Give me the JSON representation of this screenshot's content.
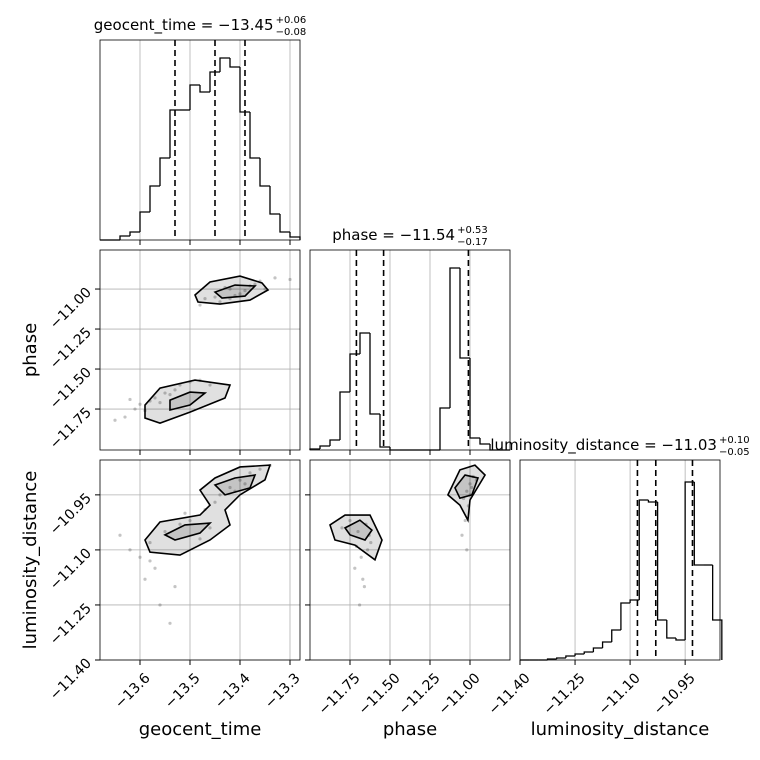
{
  "chart_data": [
    {
      "type": "histogram",
      "title": "geocent_time = −13.45",
      "title_upper": "+0.06",
      "title_lower": "−0.08",
      "bins": [
        -13.68,
        -13.66,
        -13.64,
        -13.62,
        -13.6,
        -13.58,
        -13.56,
        -13.54,
        -13.52,
        -13.5,
        -13.48,
        -13.46,
        -13.44,
        -13.42,
        -13.4,
        -13.38,
        -13.36,
        -13.34,
        -13.32,
        -13.3,
        -13.28
      ],
      "counts": [
        0,
        0,
        4,
        8,
        28,
        54,
        82,
        130,
        130,
        155,
        148,
        168,
        182,
        173,
        128,
        82,
        54,
        26,
        8,
        3
      ],
      "quantiles": [
        -13.53,
        -13.45,
        -13.39
      ],
      "color": "#000000",
      "xlim": [
        -13.68,
        -13.28
      ],
      "xticks": [
        -13.6,
        -13.5,
        -13.4,
        -13.3
      ],
      "ylim": [
        0,
        200
      ],
      "grid": true
    },
    {
      "type": "scatter",
      "ylabel": "phase",
      "x": [
        -13.45,
        -13.42,
        -13.38,
        -13.36,
        -13.4,
        -13.44,
        -13.47,
        -13.33,
        -13.39,
        -13.41,
        -13.43,
        -13.35,
        -13.48,
        -13.37,
        -13.42,
        -13.3,
        -13.6,
        -13.55,
        -13.52,
        -13.58,
        -13.63,
        -13.5,
        -13.57,
        -13.53,
        -13.61,
        -13.48,
        -13.56,
        -13.59,
        -13.65,
        -13.54,
        -13.46,
        -13.62
      ],
      "y": [
        -11.05,
        -11.0,
        -10.98,
        -10.95,
        -11.03,
        -11.08,
        -11.06,
        -10.93,
        -11.01,
        -11.04,
        -10.99,
        -11.0,
        -11.1,
        -10.97,
        -11.06,
        -10.94,
        -11.72,
        -11.65,
        -11.6,
        -11.7,
        -11.8,
        -11.58,
        -11.68,
        -11.63,
        -11.75,
        -11.57,
        -11.71,
        -11.76,
        -11.82,
        -11.66,
        -11.6,
        -11.69
      ],
      "contours": [
        {
          "x": [
            -13.49,
            -13.46,
            -13.4,
            -13.356,
            -13.344,
            -13.38,
            -13.44,
            -13.484
          ],
          "y": [
            -11.037,
            -10.956,
            -10.919,
            -10.962,
            -11.006,
            -11.069,
            -11.094,
            -11.081
          ]
        },
        {
          "x": [
            -13.45,
            -13.41,
            -13.37,
            -13.39,
            -13.436
          ],
          "y": [
            -11.019,
            -10.975,
            -10.981,
            -11.044,
            -11.056
          ]
        },
        {
          "x": [
            -13.59,
            -13.56,
            -13.49,
            -13.42,
            -13.43,
            -13.5,
            -13.56,
            -13.59
          ],
          "y": [
            -11.725,
            -11.619,
            -11.569,
            -11.6,
            -11.681,
            -11.769,
            -11.838,
            -11.806
          ]
        },
        {
          "x": [
            -13.54,
            -13.5,
            -13.47,
            -13.5,
            -13.54
          ],
          "y": [
            -11.694,
            -11.644,
            -11.65,
            -11.725,
            -11.756
          ]
        }
      ],
      "color": "#555555",
      "xlim": [
        -13.68,
        -13.28
      ],
      "xticks": [
        -13.6,
        -13.5,
        -13.4,
        -13.3
      ],
      "ylim": [
        -12.006,
        -10.756
      ],
      "yticks": [
        {
          "value": -11.75,
          "label": "−11.75"
        },
        {
          "value": -11.5,
          "label": "−11.50"
        },
        {
          "value": -11.25,
          "label": "−11.25"
        },
        {
          "value": -11.0,
          "label": "−11.00"
        }
      ],
      "grid": true
    },
    {
      "type": "histogram",
      "title": "phase = −11.54",
      "title_upper": "+0.53",
      "title_lower": "−0.17",
      "bins": [
        -12.0,
        -11.9375,
        -11.875,
        -11.8125,
        -11.75,
        -11.6875,
        -11.625,
        -11.5625,
        -11.5,
        -11.4375,
        -11.375,
        -11.3125,
        -11.25,
        -11.1875,
        -11.125,
        -11.0625,
        -11.0,
        -10.9375,
        -10.875,
        -10.8125,
        -10.75
      ],
      "counts": [
        1,
        4,
        10,
        58,
        96,
        117,
        36,
        3,
        0,
        0,
        0,
        0,
        0,
        42,
        182,
        92,
        12,
        6,
        0,
        0
      ],
      "quantiles": [
        -11.71,
        -11.54,
        -11.01
      ],
      "color": "#000000",
      "xlim": [
        -12.0,
        -10.75
      ],
      "xticks": [
        -11.75,
        -11.5,
        -11.25,
        -11.0
      ],
      "ylim": [
        0,
        200
      ],
      "grid": true
    },
    {
      "type": "scatter",
      "xlabel": "geocent_time",
      "ylabel": "luminosity_distance",
      "x": [
        -13.42,
        -13.4,
        -13.38,
        -13.44,
        -13.36,
        -13.45,
        -13.39,
        -13.41,
        -13.34,
        -13.47,
        -13.55,
        -13.52,
        -13.58,
        -13.5,
        -13.6,
        -13.57,
        -13.53,
        -13.48,
        -13.62,
        -13.56,
        -13.59,
        -13.51,
        -13.64,
        -13.54,
        -13.46,
        -13.58
      ],
      "y": [
        -10.93,
        -10.91,
        -10.89,
        -10.95,
        -10.88,
        -10.97,
        -10.92,
        -10.94,
        -10.87,
        -10.99,
        -11.05,
        -11.03,
        -11.08,
        -11.02,
        -11.12,
        -11.15,
        -11.2,
        -11.07,
        -11.1,
        -11.25,
        -11.18,
        -11.0,
        -11.06,
        -11.3,
        -11.04,
        -11.13
      ],
      "contours": [
        {
          "x": [
            -13.59,
            -13.56,
            -13.48,
            -13.46,
            -13.48,
            -13.45,
            -13.4,
            -13.34,
            -13.35,
            -13.4,
            -13.43,
            -13.42,
            -13.46,
            -13.52,
            -13.58
          ],
          "y": [
            -11.073,
            -11.024,
            -11.005,
            -10.978,
            -10.937,
            -10.904,
            -10.874,
            -10.869,
            -10.909,
            -10.95,
            -10.991,
            -11.032,
            -11.073,
            -11.114,
            -11.106
          ]
        },
        {
          "x": [
            -13.45,
            -13.41,
            -13.37,
            -13.38,
            -13.43
          ],
          "y": [
            -10.923,
            -10.904,
            -10.896,
            -10.931,
            -10.95
          ]
        },
        {
          "x": [
            -13.55,
            -13.51,
            -13.46,
            -13.48,
            -13.53
          ],
          "y": [
            -11.059,
            -11.032,
            -11.027,
            -11.054,
            -11.073
          ]
        }
      ],
      "color": "#555555",
      "xlim": [
        -13.68,
        -13.28
      ],
      "xticks": [
        {
          "value": -13.6,
          "label": "−13.6"
        },
        {
          "value": -13.5,
          "label": "−13.5"
        },
        {
          "value": -13.4,
          "label": "−13.4"
        },
        {
          "value": -13.3,
          "label": "−13.3"
        }
      ],
      "ylim": [
        -11.4,
        -10.855
      ],
      "yticks": [
        {
          "value": -11.4,
          "label": "−11.40"
        },
        {
          "value": -11.25,
          "label": "−11.25"
        },
        {
          "value": -11.1,
          "label": "−11.10"
        },
        {
          "value": -10.95,
          "label": "−10.95"
        }
      ],
      "grid": true
    },
    {
      "type": "scatter",
      "xlabel": "phase",
      "x": [
        -11.7,
        -11.65,
        -11.75,
        -11.62,
        -11.68,
        -11.72,
        -11.66,
        -11.8,
        -11.64,
        -11.69,
        -11.67,
        -11.63,
        -11.71,
        -11.02,
        -11.0,
        -10.98,
        -11.04,
        -11.01,
        -10.96,
        -11.03,
        -11.05,
        -10.99,
        -11.02,
        -11.0
      ],
      "y": [
        -11.05,
        -11.03,
        -11.02,
        -11.08,
        -11.12,
        -11.15,
        -11.2,
        -11.04,
        -11.1,
        -11.25,
        -11.18,
        -11.06,
        -11.09,
        -10.94,
        -10.92,
        -10.9,
        -10.96,
        -10.98,
        -10.91,
        -11.02,
        -11.06,
        -10.93,
        -11.1,
        -10.95
      ],
      "contours": [
        {
          "x": [
            -11.875,
            -11.781,
            -11.625,
            -11.55,
            -11.594,
            -11.719,
            -11.844
          ],
          "y": [
            -11.032,
            -11.005,
            -11.005,
            -11.073,
            -11.127,
            -11.087,
            -11.073
          ]
        },
        {
          "x": [
            -11.781,
            -11.688,
            -11.613,
            -11.656,
            -11.75
          ],
          "y": [
            -11.04,
            -11.019,
            -11.046,
            -11.073,
            -11.059
          ]
        },
        {
          "x": [
            -11.138,
            -11.063,
            -10.969,
            -10.906,
            -11.0,
            -11.013,
            -11.063
          ],
          "y": [
            -10.95,
            -10.882,
            -10.869,
            -10.896,
            -10.964,
            -11.019,
            -10.978
          ]
        },
        {
          "x": [
            -11.094,
            -11.031,
            -10.95,
            -10.988,
            -11.063
          ],
          "y": [
            -10.931,
            -10.896,
            -10.904,
            -10.95,
            -10.959
          ]
        }
      ],
      "color": "#555555",
      "xlim": [
        -12.0,
        -10.75
      ],
      "xticks": [
        {
          "value": -11.75,
          "label": "−11.75"
        },
        {
          "value": -11.5,
          "label": "−11.50"
        },
        {
          "value": -11.25,
          "label": "−11.25"
        },
        {
          "value": -11.0,
          "label": "−11.00"
        }
      ],
      "ylim": [
        -11.4,
        -10.855
      ],
      "yticks": [
        -11.4,
        -11.25,
        -11.1,
        -10.95
      ],
      "grid": true
    },
    {
      "type": "histogram",
      "title": "luminosity_distance = −11.03",
      "title_upper": "+0.10",
      "title_lower": "−0.05",
      "xlabel": "luminosity_distance",
      "bins": [
        -11.4,
        -11.375,
        -11.35,
        -11.325,
        -11.3,
        -11.275,
        -11.25,
        -11.225,
        -11.2,
        -11.175,
        -11.15,
        -11.125,
        -11.1,
        -11.075,
        -11.05,
        -11.025,
        -11.0,
        -10.975,
        -10.95,
        -10.925,
        -10.9,
        -10.875,
        -10.85
      ],
      "counts": [
        0,
        0,
        0,
        1,
        2,
        4,
        6,
        8,
        12,
        18,
        30,
        57,
        60,
        160,
        158,
        40,
        22,
        20,
        178,
        95,
        95,
        40
      ],
      "quantiles": [
        -11.08,
        -11.03,
        -10.93
      ],
      "color": "#000000",
      "xlim": [
        -11.4,
        -10.855
      ],
      "xticks": [
        {
          "value": -11.4,
          "label": "−11.40"
        },
        {
          "value": -11.25,
          "label": "−11.25"
        },
        {
          "value": -11.1,
          "label": "−11.10"
        },
        {
          "value": -10.95,
          "label": "−10.95"
        }
      ],
      "ylim": [
        0,
        200
      ],
      "grid": true
    }
  ]
}
